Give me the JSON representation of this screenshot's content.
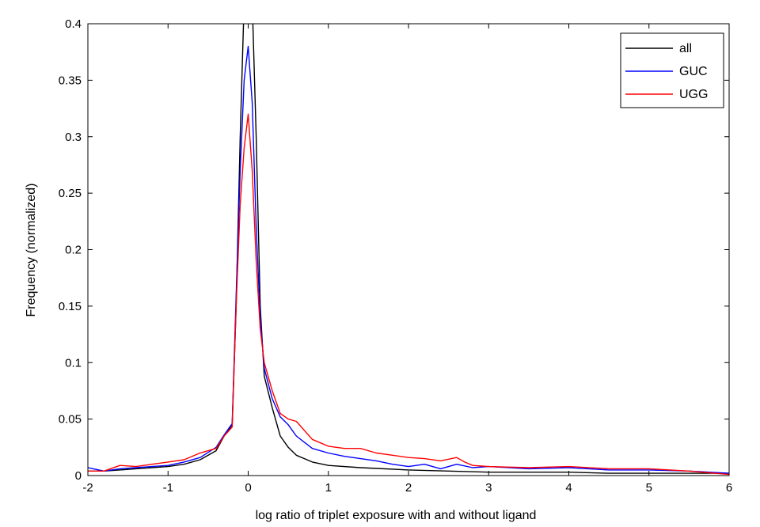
{
  "chart_data": {
    "type": "line",
    "title": "",
    "xlabel": "log ratio of triplet exposure with and without ligand",
    "ylabel": "Frequency (normalized)",
    "xlim": [
      -2,
      6
    ],
    "ylim": [
      0,
      0.4
    ],
    "xticks": [
      "-2",
      "-1",
      "0",
      "1",
      "2",
      "3",
      "4",
      "5",
      "6"
    ],
    "yticks": [
      "0",
      "0.05",
      "0.1",
      "0.15",
      "0.2",
      "0.25",
      "0.3",
      "0.35",
      "0.4"
    ],
    "grid": false,
    "legend_position": "top-right",
    "series": [
      {
        "name": "all",
        "color": "#000000",
        "x": [
          -2.0,
          -1.8,
          -1.6,
          -1.4,
          -1.2,
          -1.0,
          -0.8,
          -0.6,
          -0.4,
          -0.3,
          -0.2,
          -0.15,
          -0.1,
          -0.05,
          0.0,
          0.05,
          0.1,
          0.15,
          0.2,
          0.3,
          0.4,
          0.5,
          0.6,
          0.8,
          1.0,
          1.4,
          2.0,
          2.5,
          3.0,
          3.5,
          4.0,
          4.5,
          5.0,
          5.5,
          6.0
        ],
        "y": [
          0.004,
          0.004,
          0.005,
          0.006,
          0.007,
          0.008,
          0.01,
          0.014,
          0.022,
          0.035,
          0.045,
          0.15,
          0.3,
          0.42,
          0.42,
          0.42,
          0.3,
          0.15,
          0.088,
          0.06,
          0.035,
          0.025,
          0.018,
          0.012,
          0.009,
          0.007,
          0.005,
          0.004,
          0.003,
          0.003,
          0.003,
          0.002,
          0.002,
          0.002,
          0.002
        ]
      },
      {
        "name": "GUC",
        "color": "#0000ff",
        "x": [
          -2.0,
          -1.8,
          -1.6,
          -1.4,
          -1.2,
          -1.0,
          -0.8,
          -0.6,
          -0.4,
          -0.3,
          -0.2,
          -0.15,
          -0.1,
          -0.05,
          0.0,
          0.05,
          0.1,
          0.15,
          0.2,
          0.3,
          0.4,
          0.5,
          0.6,
          0.8,
          1.0,
          1.2,
          1.4,
          1.6,
          1.8,
          2.0,
          2.2,
          2.4,
          2.6,
          2.8,
          3.0,
          3.5,
          4.0,
          4.5,
          5.0,
          5.5,
          6.0
        ],
        "y": [
          0.007,
          0.004,
          0.006,
          0.007,
          0.008,
          0.009,
          0.012,
          0.016,
          0.025,
          0.036,
          0.046,
          0.16,
          0.27,
          0.35,
          0.38,
          0.33,
          0.22,
          0.14,
          0.095,
          0.068,
          0.052,
          0.045,
          0.035,
          0.024,
          0.02,
          0.017,
          0.015,
          0.013,
          0.01,
          0.008,
          0.01,
          0.006,
          0.01,
          0.007,
          0.008,
          0.006,
          0.007,
          0.005,
          0.005,
          0.004,
          0.002
        ]
      },
      {
        "name": "UGG",
        "color": "#ff0000",
        "x": [
          -2.0,
          -1.8,
          -1.6,
          -1.4,
          -1.2,
          -1.0,
          -0.8,
          -0.6,
          -0.4,
          -0.3,
          -0.2,
          -0.15,
          -0.1,
          -0.05,
          0.0,
          0.05,
          0.1,
          0.15,
          0.2,
          0.3,
          0.4,
          0.5,
          0.6,
          0.8,
          1.0,
          1.2,
          1.4,
          1.6,
          1.8,
          2.0,
          2.2,
          2.4,
          2.6,
          2.7,
          2.8,
          3.0,
          3.5,
          4.0,
          4.5,
          5.0,
          5.5,
          6.0
        ],
        "y": [
          0.004,
          0.004,
          0.009,
          0.008,
          0.01,
          0.012,
          0.014,
          0.02,
          0.024,
          0.035,
          0.043,
          0.15,
          0.24,
          0.29,
          0.32,
          0.27,
          0.19,
          0.13,
          0.1,
          0.075,
          0.055,
          0.05,
          0.048,
          0.032,
          0.026,
          0.024,
          0.024,
          0.02,
          0.018,
          0.016,
          0.015,
          0.013,
          0.016,
          0.012,
          0.009,
          0.008,
          0.007,
          0.008,
          0.006,
          0.006,
          0.004,
          0.001
        ]
      }
    ]
  }
}
